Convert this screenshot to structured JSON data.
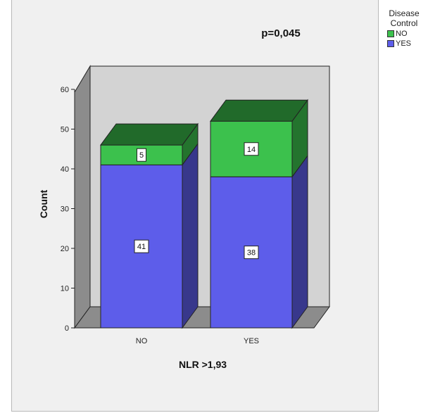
{
  "chart_data": {
    "type": "bar",
    "stacked": true,
    "three_d": true,
    "annotation": "p=0,045",
    "xlabel": "NLR >1,93",
    "ylabel": "Count",
    "categories": [
      "NO",
      "YES"
    ],
    "ylim": [
      0,
      60
    ],
    "yticks": [
      0,
      10,
      20,
      30,
      40,
      50,
      60
    ],
    "legend_title": "Disease Control",
    "legend_placement": "top-right-outside",
    "series": [
      {
        "name": "YES",
        "values": [
          41,
          38
        ],
        "color": "#5d5dea"
      },
      {
        "name": "NO",
        "values": [
          5,
          14
        ],
        "color": "#3cc14d"
      }
    ],
    "legend_order": [
      "NO",
      "YES"
    ]
  }
}
